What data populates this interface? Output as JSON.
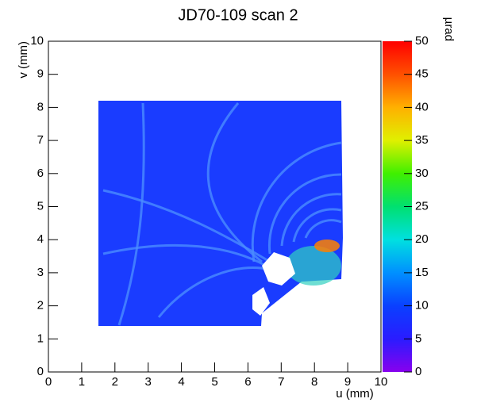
{
  "chart_data": {
    "type": "heatmap",
    "title": "JD70-109 scan 2",
    "xlabel": "u (mm)",
    "ylabel": "v (mm)",
    "zlabel": "µrad",
    "xlim": [
      0,
      10
    ],
    "xticks": [
      0,
      1,
      2,
      3,
      4,
      5,
      6,
      7,
      8,
      9,
      10
    ],
    "ylim": [
      0,
      10
    ],
    "yticks": [
      0,
      1,
      2,
      3,
      4,
      5,
      6,
      7,
      8,
      9,
      10
    ],
    "zlim": [
      0,
      50
    ],
    "zticks": [
      0,
      5,
      10,
      15,
      20,
      25,
      30,
      35,
      40,
      45,
      50
    ],
    "colormap": [
      "#8800ee",
      "#2a1cff",
      "#0a40ff",
      "#0090ff",
      "#00e0e0",
      "#00e070",
      "#40f000",
      "#e0f000",
      "#ffb000",
      "#ff5000",
      "#ff0000"
    ]
  }
}
